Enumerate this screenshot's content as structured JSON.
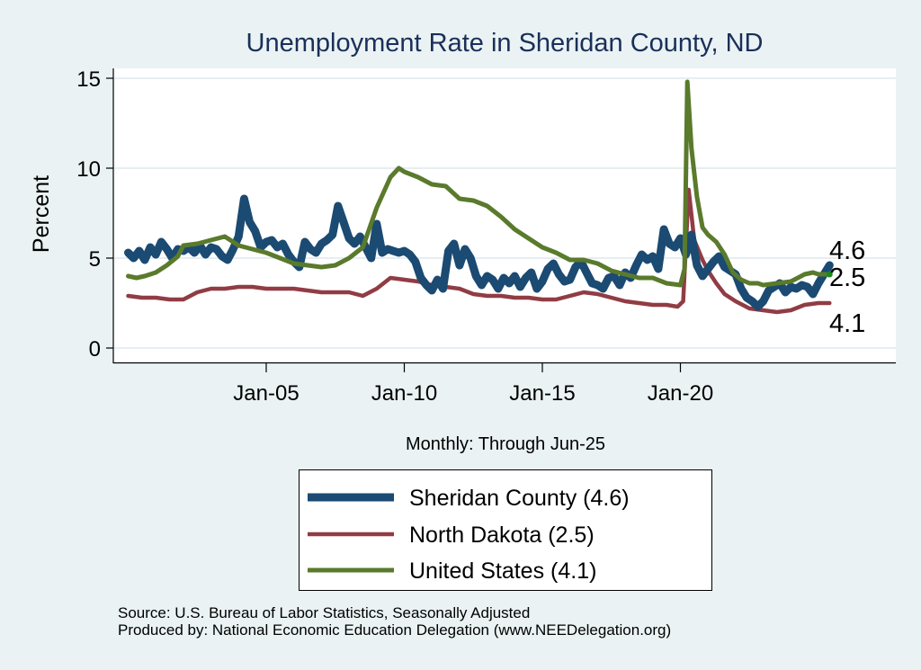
{
  "chart_data": {
    "type": "line",
    "title": "Unemployment Rate in Sheridan  County, ND",
    "xlabel": "Monthly: Through Jun-25",
    "ylabel": "Percent",
    "ylim": [
      0,
      15
    ],
    "xlim": [
      2000,
      2025.5
    ],
    "yticks": [
      0,
      5,
      10,
      15
    ],
    "xticks": [
      {
        "label": "Jan-05",
        "value": 2005
      },
      {
        "label": "Jan-10",
        "value": 2010
      },
      {
        "label": "Jan-15",
        "value": 2015
      },
      {
        "label": "Jan-20",
        "value": 2020
      }
    ],
    "grid": true,
    "legend_position": "bottom-center",
    "series": [
      {
        "name": "Sheridan  County (4.6)",
        "color": "#1b4a72",
        "end_label": "4.6",
        "points": [
          [
            2000.0,
            5.3
          ],
          [
            2000.2,
            5.0
          ],
          [
            2000.4,
            5.4
          ],
          [
            2000.6,
            4.9
          ],
          [
            2000.8,
            5.6
          ],
          [
            2001.0,
            5.2
          ],
          [
            2001.2,
            5.9
          ],
          [
            2001.4,
            5.5
          ],
          [
            2001.6,
            5.0
          ],
          [
            2001.8,
            5.5
          ],
          [
            2002.0,
            5.4
          ],
          [
            2002.2,
            5.6
          ],
          [
            2002.4,
            5.3
          ],
          [
            2002.6,
            5.7
          ],
          [
            2002.8,
            5.2
          ],
          [
            2003.0,
            5.6
          ],
          [
            2003.2,
            5.5
          ],
          [
            2003.4,
            5.1
          ],
          [
            2003.6,
            4.9
          ],
          [
            2003.8,
            5.5
          ],
          [
            2004.0,
            6.2
          ],
          [
            2004.2,
            8.3
          ],
          [
            2004.4,
            7.0
          ],
          [
            2004.6,
            6.5
          ],
          [
            2004.8,
            5.6
          ],
          [
            2005.0,
            5.9
          ],
          [
            2005.2,
            6.0
          ],
          [
            2005.4,
            5.6
          ],
          [
            2005.6,
            5.8
          ],
          [
            2005.8,
            5.2
          ],
          [
            2006.0,
            4.8
          ],
          [
            2006.2,
            4.5
          ],
          [
            2006.4,
            5.9
          ],
          [
            2006.6,
            5.5
          ],
          [
            2006.8,
            5.3
          ],
          [
            2007.0,
            5.8
          ],
          [
            2007.2,
            6.0
          ],
          [
            2007.4,
            6.3
          ],
          [
            2007.6,
            7.9
          ],
          [
            2007.8,
            7.0
          ],
          [
            2008.0,
            6.1
          ],
          [
            2008.2,
            5.8
          ],
          [
            2008.4,
            6.2
          ],
          [
            2008.6,
            5.6
          ],
          [
            2008.8,
            5.0
          ],
          [
            2009.0,
            6.9
          ],
          [
            2009.2,
            5.3
          ],
          [
            2009.4,
            5.5
          ],
          [
            2009.6,
            5.4
          ],
          [
            2009.8,
            5.3
          ],
          [
            2010.0,
            5.4
          ],
          [
            2010.2,
            5.2
          ],
          [
            2010.4,
            4.8
          ],
          [
            2010.6,
            3.9
          ],
          [
            2010.8,
            3.5
          ],
          [
            2011.0,
            3.2
          ],
          [
            2011.2,
            3.8
          ],
          [
            2011.4,
            3.3
          ],
          [
            2011.6,
            5.4
          ],
          [
            2011.8,
            5.8
          ],
          [
            2012.0,
            4.6
          ],
          [
            2012.2,
            5.5
          ],
          [
            2012.4,
            5.0
          ],
          [
            2012.6,
            4.0
          ],
          [
            2012.8,
            3.5
          ],
          [
            2013.0,
            4.0
          ],
          [
            2013.2,
            3.8
          ],
          [
            2013.4,
            3.3
          ],
          [
            2013.6,
            3.9
          ],
          [
            2013.8,
            3.6
          ],
          [
            2014.0,
            4.0
          ],
          [
            2014.2,
            3.4
          ],
          [
            2014.4,
            3.9
          ],
          [
            2014.6,
            4.2
          ],
          [
            2014.8,
            3.3
          ],
          [
            2015.0,
            3.7
          ],
          [
            2015.2,
            4.4
          ],
          [
            2015.4,
            4.7
          ],
          [
            2015.6,
            4.1
          ],
          [
            2015.8,
            3.7
          ],
          [
            2016.0,
            3.8
          ],
          [
            2016.2,
            4.5
          ],
          [
            2016.4,
            4.8
          ],
          [
            2016.6,
            4.2
          ],
          [
            2016.8,
            3.6
          ],
          [
            2017.0,
            3.5
          ],
          [
            2017.2,
            3.3
          ],
          [
            2017.4,
            3.9
          ],
          [
            2017.6,
            4.0
          ],
          [
            2017.8,
            3.5
          ],
          [
            2018.0,
            4.2
          ],
          [
            2018.2,
            3.9
          ],
          [
            2018.4,
            4.6
          ],
          [
            2018.6,
            5.2
          ],
          [
            2018.8,
            4.9
          ],
          [
            2019.0,
            5.1
          ],
          [
            2019.2,
            4.4
          ],
          [
            2019.4,
            6.6
          ],
          [
            2019.6,
            5.8
          ],
          [
            2019.8,
            5.6
          ],
          [
            2020.0,
            6.1
          ],
          [
            2020.2,
            5.2
          ],
          [
            2020.4,
            6.3
          ],
          [
            2020.6,
            4.6
          ],
          [
            2020.8,
            4.0
          ],
          [
            2021.0,
            4.4
          ],
          [
            2021.2,
            4.8
          ],
          [
            2021.4,
            5.1
          ],
          [
            2021.6,
            4.5
          ],
          [
            2021.8,
            4.3
          ],
          [
            2022.0,
            4.1
          ],
          [
            2022.2,
            3.3
          ],
          [
            2022.4,
            2.8
          ],
          [
            2022.6,
            2.6
          ],
          [
            2022.8,
            2.3
          ],
          [
            2023.0,
            2.6
          ],
          [
            2023.2,
            3.2
          ],
          [
            2023.4,
            3.4
          ],
          [
            2023.6,
            3.6
          ],
          [
            2023.8,
            3.1
          ],
          [
            2024.0,
            3.4
          ],
          [
            2024.2,
            3.3
          ],
          [
            2024.4,
            3.5
          ],
          [
            2024.6,
            3.4
          ],
          [
            2024.8,
            3.0
          ],
          [
            2025.0,
            3.6
          ],
          [
            2025.2,
            4.1
          ],
          [
            2025.4,
            4.6
          ]
        ]
      },
      {
        "name": "North Dakota (2.5)",
        "color": "#913c44",
        "end_label": "2.5",
        "points": [
          [
            2000.0,
            2.9
          ],
          [
            2000.5,
            2.8
          ],
          [
            2001.0,
            2.8
          ],
          [
            2001.5,
            2.7
          ],
          [
            2002.0,
            2.7
          ],
          [
            2002.5,
            3.1
          ],
          [
            2003.0,
            3.3
          ],
          [
            2003.5,
            3.3
          ],
          [
            2004.0,
            3.4
          ],
          [
            2004.5,
            3.4
          ],
          [
            2005.0,
            3.3
          ],
          [
            2005.5,
            3.3
          ],
          [
            2006.0,
            3.3
          ],
          [
            2006.5,
            3.2
          ],
          [
            2007.0,
            3.1
          ],
          [
            2007.5,
            3.1
          ],
          [
            2008.0,
            3.1
          ],
          [
            2008.5,
            2.9
          ],
          [
            2009.0,
            3.3
          ],
          [
            2009.5,
            3.9
          ],
          [
            2010.0,
            3.8
          ],
          [
            2010.5,
            3.7
          ],
          [
            2011.0,
            3.5
          ],
          [
            2011.5,
            3.4
          ],
          [
            2012.0,
            3.3
          ],
          [
            2012.5,
            3.0
          ],
          [
            2013.0,
            2.9
          ],
          [
            2013.5,
            2.9
          ],
          [
            2014.0,
            2.8
          ],
          [
            2014.5,
            2.8
          ],
          [
            2015.0,
            2.7
          ],
          [
            2015.5,
            2.7
          ],
          [
            2016.0,
            2.9
          ],
          [
            2016.5,
            3.1
          ],
          [
            2017.0,
            3.0
          ],
          [
            2017.5,
            2.8
          ],
          [
            2018.0,
            2.6
          ],
          [
            2018.5,
            2.5
          ],
          [
            2019.0,
            2.4
          ],
          [
            2019.5,
            2.4
          ],
          [
            2019.9,
            2.3
          ],
          [
            2020.1,
            2.6
          ],
          [
            2020.3,
            8.8
          ],
          [
            2020.5,
            6.0
          ],
          [
            2020.8,
            4.9
          ],
          [
            2021.0,
            4.3
          ],
          [
            2021.3,
            3.6
          ],
          [
            2021.6,
            3.0
          ],
          [
            2022.0,
            2.6
          ],
          [
            2022.5,
            2.2
          ],
          [
            2023.0,
            2.1
          ],
          [
            2023.5,
            2.0
          ],
          [
            2024.0,
            2.1
          ],
          [
            2024.5,
            2.4
          ],
          [
            2025.0,
            2.5
          ],
          [
            2025.4,
            2.5
          ]
        ]
      },
      {
        "name": "United States (4.1)",
        "color": "#5a7a2c",
        "end_label": "4.1",
        "points": [
          [
            2000.0,
            4.0
          ],
          [
            2000.3,
            3.9
          ],
          [
            2000.6,
            4.0
          ],
          [
            2001.0,
            4.2
          ],
          [
            2001.4,
            4.6
          ],
          [
            2001.8,
            5.1
          ],
          [
            2002.0,
            5.7
          ],
          [
            2002.5,
            5.8
          ],
          [
            2003.0,
            6.0
          ],
          [
            2003.5,
            6.2
          ],
          [
            2004.0,
            5.7
          ],
          [
            2004.5,
            5.5
          ],
          [
            2005.0,
            5.3
          ],
          [
            2005.5,
            5.0
          ],
          [
            2006.0,
            4.7
          ],
          [
            2006.5,
            4.6
          ],
          [
            2007.0,
            4.5
          ],
          [
            2007.5,
            4.6
          ],
          [
            2008.0,
            5.0
          ],
          [
            2008.5,
            5.6
          ],
          [
            2009.0,
            7.8
          ],
          [
            2009.5,
            9.5
          ],
          [
            2009.8,
            10.0
          ],
          [
            2010.0,
            9.8
          ],
          [
            2010.5,
            9.5
          ],
          [
            2011.0,
            9.1
          ],
          [
            2011.5,
            9.0
          ],
          [
            2012.0,
            8.3
          ],
          [
            2012.5,
            8.2
          ],
          [
            2013.0,
            7.9
          ],
          [
            2013.5,
            7.3
          ],
          [
            2014.0,
            6.6
          ],
          [
            2014.5,
            6.1
          ],
          [
            2015.0,
            5.6
          ],
          [
            2015.5,
            5.3
          ],
          [
            2016.0,
            4.9
          ],
          [
            2016.5,
            4.9
          ],
          [
            2017.0,
            4.7
          ],
          [
            2017.5,
            4.3
          ],
          [
            2018.0,
            4.1
          ],
          [
            2018.5,
            3.9
          ],
          [
            2019.0,
            3.9
          ],
          [
            2019.5,
            3.6
          ],
          [
            2020.0,
            3.5
          ],
          [
            2020.15,
            4.4
          ],
          [
            2020.25,
            14.8
          ],
          [
            2020.4,
            11.1
          ],
          [
            2020.6,
            8.4
          ],
          [
            2020.8,
            6.7
          ],
          [
            2021.0,
            6.3
          ],
          [
            2021.3,
            5.9
          ],
          [
            2021.6,
            5.2
          ],
          [
            2021.9,
            4.2
          ],
          [
            2022.2,
            3.8
          ],
          [
            2022.5,
            3.6
          ],
          [
            2022.8,
            3.6
          ],
          [
            2023.0,
            3.5
          ],
          [
            2023.5,
            3.6
          ],
          [
            2024.0,
            3.7
          ],
          [
            2024.5,
            4.1
          ],
          [
            2024.8,
            4.2
          ],
          [
            2025.0,
            4.1
          ],
          [
            2025.4,
            4.1
          ]
        ]
      }
    ]
  },
  "footer": {
    "source": "Source: U.S. Bureau of Labor Statistics, Seasonally Adjusted",
    "producer": "Produced by: National Economic Education Delegation (www.NEEDelegation.org)"
  }
}
